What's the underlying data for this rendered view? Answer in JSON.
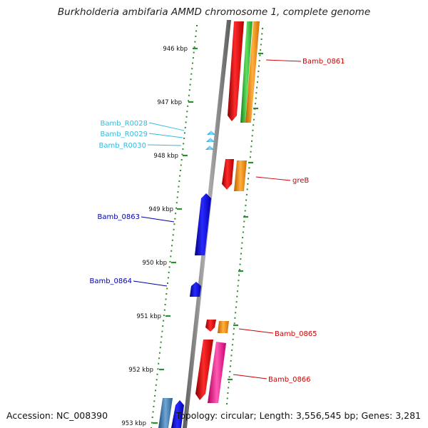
{
  "title": "Burkholderia ambifaria AMMD chromosome 1, complete genome",
  "footer": {
    "accession": "Accession: NC_008390",
    "summary": "Topology: circular; Length: 3,556,545 bp; Genes: 3,281"
  },
  "colors": {
    "background": "#ffffff",
    "backbone": "#8c8c8c",
    "tick_dots": "#2e8b2e",
    "tick_label": "#111111",
    "label_red": "#cc0000",
    "label_cyan": "#33bbdd",
    "label_blue": "#0000aa"
  },
  "ticks": [
    {
      "label": "946 kbp"
    },
    {
      "label": "947 kbp"
    },
    {
      "label": "948 kbp"
    },
    {
      "label": "949 kbp"
    },
    {
      "label": "950 kbp"
    },
    {
      "label": "951 kbp"
    },
    {
      "label": "952 kbp"
    },
    {
      "label": "953 kbp"
    }
  ],
  "features": [
    {
      "name": "Bamb_0861",
      "label_color": "#cc0000"
    },
    {
      "name": "Bamb_R0028",
      "label_color": "#33bbdd"
    },
    {
      "name": "Bamb_R0029",
      "label_color": "#33bbdd"
    },
    {
      "name": "Bamb_R0030",
      "label_color": "#33bbdd"
    },
    {
      "name": "greB",
      "label_color": "#cc0000"
    },
    {
      "name": "Bamb_0863",
      "label_color": "#0000aa"
    },
    {
      "name": "Bamb_0864",
      "label_color": "#0000aa"
    },
    {
      "name": "Bamb_0865",
      "label_color": "#cc0000"
    },
    {
      "name": "Bamb_0866",
      "label_color": "#cc0000"
    }
  ]
}
